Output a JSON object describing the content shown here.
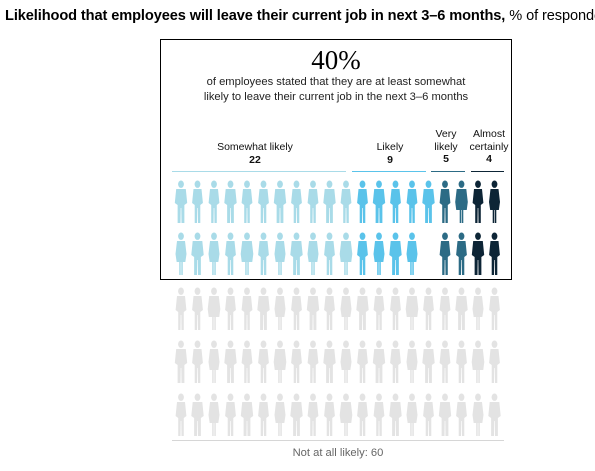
{
  "title": {
    "bold": "Likelihood that employees will leave their current job in next 3–6 months,",
    "regular": "% of respondents"
  },
  "headline": {
    "value": "40%",
    "caption_line1": "of employees stated that they are at least somewhat",
    "caption_line2": "likely to leave their current job in the next 3–6 months"
  },
  "chart_data": {
    "type": "pictogram",
    "unit": "% of respondents",
    "categories": [
      {
        "label": "Somewhat likely",
        "value": 22,
        "color": "#a9dbe8"
      },
      {
        "label": "Likely",
        "value": 9,
        "color": "#5ac3ea"
      },
      {
        "label": "Very likely",
        "label_lines": [
          "Very",
          "likely"
        ],
        "value": 5,
        "color": "#2c6b85"
      },
      {
        "label": "Almost certainly",
        "label_lines": [
          "Almost",
          "certainly"
        ],
        "value": 4,
        "color": "#0d2536"
      },
      {
        "label": "Not at all likely",
        "value": 60,
        "color": "#e3e3e3"
      }
    ],
    "footer_label": "Not at all likely: 60"
  }
}
